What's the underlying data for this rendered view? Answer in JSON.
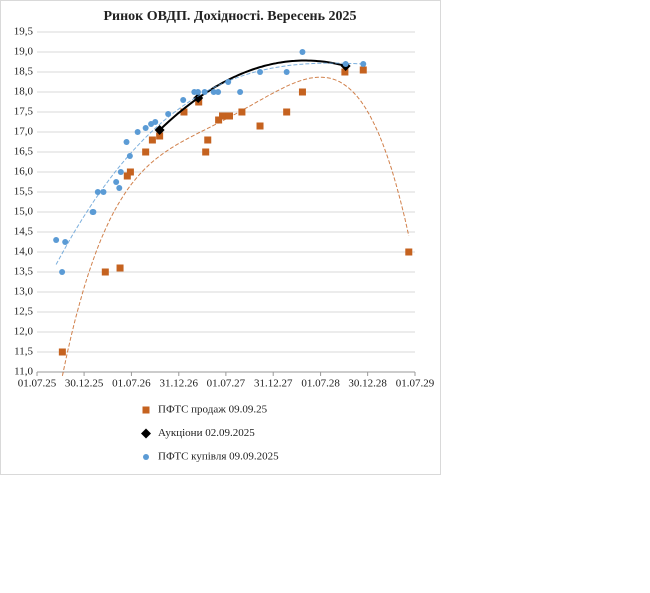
{
  "chart_data": {
    "type": "scatter",
    "title": "Ринок ОВДП. Дохідності.  Вересень 2025",
    "xlim": [
      "2025-07-01",
      "2029-07-01"
    ],
    "xticks": [
      {
        "value": "2025-07-01",
        "label": "01.07.25"
      },
      {
        "value": "2025-12-30",
        "label": "30.12.25"
      },
      {
        "value": "2026-07-01",
        "label": "01.07.26"
      },
      {
        "value": "2026-12-31",
        "label": "31.12.26"
      },
      {
        "value": "2027-07-01",
        "label": "01.07.27"
      },
      {
        "value": "2027-12-31",
        "label": "31.12.27"
      },
      {
        "value": "2028-07-01",
        "label": "01.07.28"
      },
      {
        "value": "2028-12-30",
        "label": "30.12.28"
      },
      {
        "value": "2029-07-01",
        "label": "01.07.29"
      }
    ],
    "ylim": [
      11,
      19.5
    ],
    "yticks": [
      {
        "value": 11,
        "label": "11,0"
      },
      {
        "value": 11.5,
        "label": "11,5"
      },
      {
        "value": 12,
        "label": "12,0"
      },
      {
        "value": 12.5,
        "label": "12,5"
      },
      {
        "value": 13,
        "label": "13,0"
      },
      {
        "value": 13.5,
        "label": "13,5"
      },
      {
        "value": 14,
        "label": "14,0"
      },
      {
        "value": 14.5,
        "label": "14,5"
      },
      {
        "value": 15,
        "label": "15,0"
      },
      {
        "value": 15.5,
        "label": "15,5"
      },
      {
        "value": 16,
        "label": "16,0"
      },
      {
        "value": 16.5,
        "label": "16,5"
      },
      {
        "value": 17,
        "label": "17,0"
      },
      {
        "value": 17.5,
        "label": "17,5"
      },
      {
        "value": 18,
        "label": "18,0"
      },
      {
        "value": 18.5,
        "label": "18,5"
      },
      {
        "value": 19,
        "label": "19,0"
      },
      {
        "value": 19.5,
        "label": "19,5"
      }
    ],
    "grid": true,
    "legend": "bottom",
    "series": [
      {
        "name": "ПФТС продаж 09.09.25",
        "color": "#c5621f",
        "marker": "square",
        "trendline": 4,
        "x": [
          "2025-10-07",
          "2026-03-22",
          "2026-05-18",
          "2026-06-15",
          "2026-06-27",
          "2026-08-25",
          "2026-09-20",
          "2026-10-18",
          "2027-01-20",
          "2027-03-18",
          "2027-04-14",
          "2027-04-22",
          "2027-06-03",
          "2027-06-18",
          "2027-07-15",
          "2027-09-01",
          "2027-11-10",
          "2028-02-21",
          "2028-04-22",
          "2028-10-03",
          "2028-12-13",
          "2029-06-07"
        ],
        "values": [
          11.5,
          13.5,
          13.6,
          15.9,
          16.0,
          16.5,
          16.8,
          16.9,
          17.5,
          17.75,
          16.5,
          16.8,
          17.3,
          17.4,
          17.4,
          17.5,
          17.15,
          17.5,
          18.0,
          18.5,
          18.55,
          14.0
        ]
      },
      {
        "name": "Аукціони 02.09.2025",
        "color": "#000000",
        "marker": "diamond",
        "line": true,
        "x": [
          "2026-10-18",
          "2027-03-16",
          "2028-10-06"
        ],
        "values": [
          17.05,
          17.85,
          18.65
        ]
      },
      {
        "name": "ПФТС купівля 09.09.2025",
        "color": "#5b9bd5",
        "marker": "circle",
        "trendline": 3,
        "x": [
          "2025-09-13",
          "2025-10-06",
          "2025-10-18",
          "2026-02-01",
          "2026-02-04",
          "2026-02-21",
          "2026-03-15",
          "2026-05-03",
          "2026-05-15",
          "2026-05-21",
          "2026-06-12",
          "2026-06-25",
          "2026-07-25",
          "2026-08-25",
          "2026-09-15",
          "2026-10-01",
          "2026-11-20",
          "2027-01-17",
          "2027-03-01",
          "2027-03-15",
          "2027-04-10",
          "2027-05-15",
          "2027-06-01",
          "2027-07-10",
          "2027-08-25",
          "2027-11-10",
          "2028-02-21",
          "2028-04-22",
          "2028-10-06",
          "2028-12-13"
        ],
        "values": [
          14.3,
          13.5,
          14.25,
          15.0,
          15.0,
          15.5,
          15.5,
          15.75,
          15.6,
          16.0,
          16.75,
          16.4,
          17.0,
          17.1,
          17.2,
          17.25,
          17.45,
          17.8,
          18.0,
          18.0,
          18.0,
          18.0,
          18.0,
          18.25,
          18.0,
          18.5,
          18.5,
          19.0,
          18.7,
          18.7
        ]
      }
    ]
  }
}
